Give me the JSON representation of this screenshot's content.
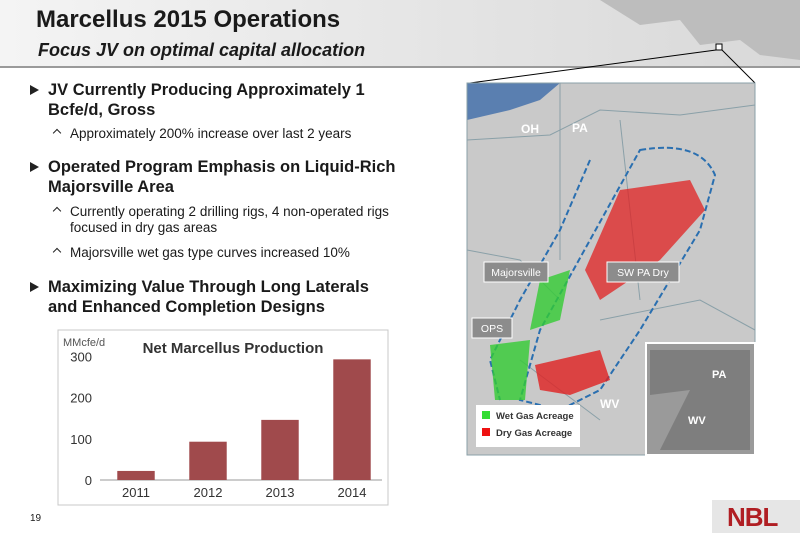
{
  "header": {
    "title": "Marcellus 2015 Operations",
    "subtitle": "Focus JV on optimal capital allocation"
  },
  "bullets": [
    {
      "text": "JV Currently Producing Approximately 1 Bcfe/d, Gross",
      "subs": [
        "Approximately 200% increase over last 2 years"
      ]
    },
    {
      "text": "Operated Program Emphasis on Liquid-Rich Majorsville Area",
      "subs": [
        "Currently operating 2 drilling rigs, 4 non-operated rigs focused in dry gas areas",
        "Majorsville wet gas type curves increased 10%"
      ]
    },
    {
      "text": "Maximizing Value Through Long Laterals and Enhanced Completion Designs",
      "subs": []
    }
  ],
  "map": {
    "state_labels": [
      "OH",
      "PA",
      "WV"
    ],
    "callouts": [
      "Majorsville",
      "SW PA Dry",
      "OPS"
    ],
    "inset_labels": [
      "PA",
      "WV"
    ],
    "legend": [
      {
        "name": "Wet Gas Acreage",
        "color": "#33dd33"
      },
      {
        "name": "Dry Gas Acreage",
        "color": "#ee1111"
      }
    ]
  },
  "chart_data": {
    "type": "bar",
    "title": "Net Marcellus Production",
    "y_label": "MMcfe/d",
    "categories": [
      "2011",
      "2012",
      "2013",
      "2014"
    ],
    "values": [
      22,
      93,
      146,
      293
    ],
    "color": "#a04a4c",
    "ylim": [
      0,
      340
    ],
    "yticks": [
      0,
      100,
      200,
      300
    ]
  },
  "page_number": "19",
  "logo": "NBL"
}
